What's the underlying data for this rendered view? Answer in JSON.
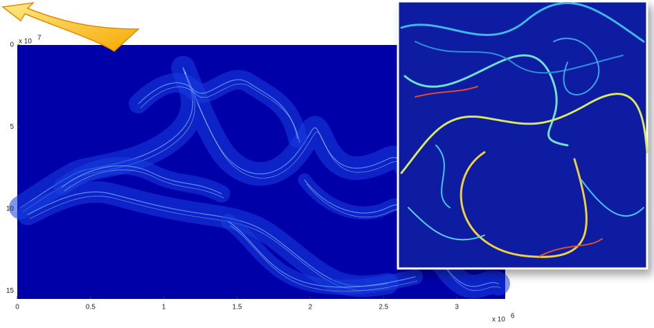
{
  "chart_data": {
    "type": "image",
    "xlim": [
      0,
      3.33
    ],
    "xticks": [
      0,
      0.5,
      1,
      1.5,
      2,
      2.5,
      3
    ],
    "ylim": [
      0,
      15.5
    ],
    "yticks": [
      0,
      5,
      10,
      15
    ],
    "x_multiplier": {
      "base": "x 10",
      "exponent": "6"
    },
    "y_multiplier": {
      "base": "x 10",
      "exponent": "7"
    },
    "y_inverted": true,
    "background_color": "#0000a8"
  }
}
